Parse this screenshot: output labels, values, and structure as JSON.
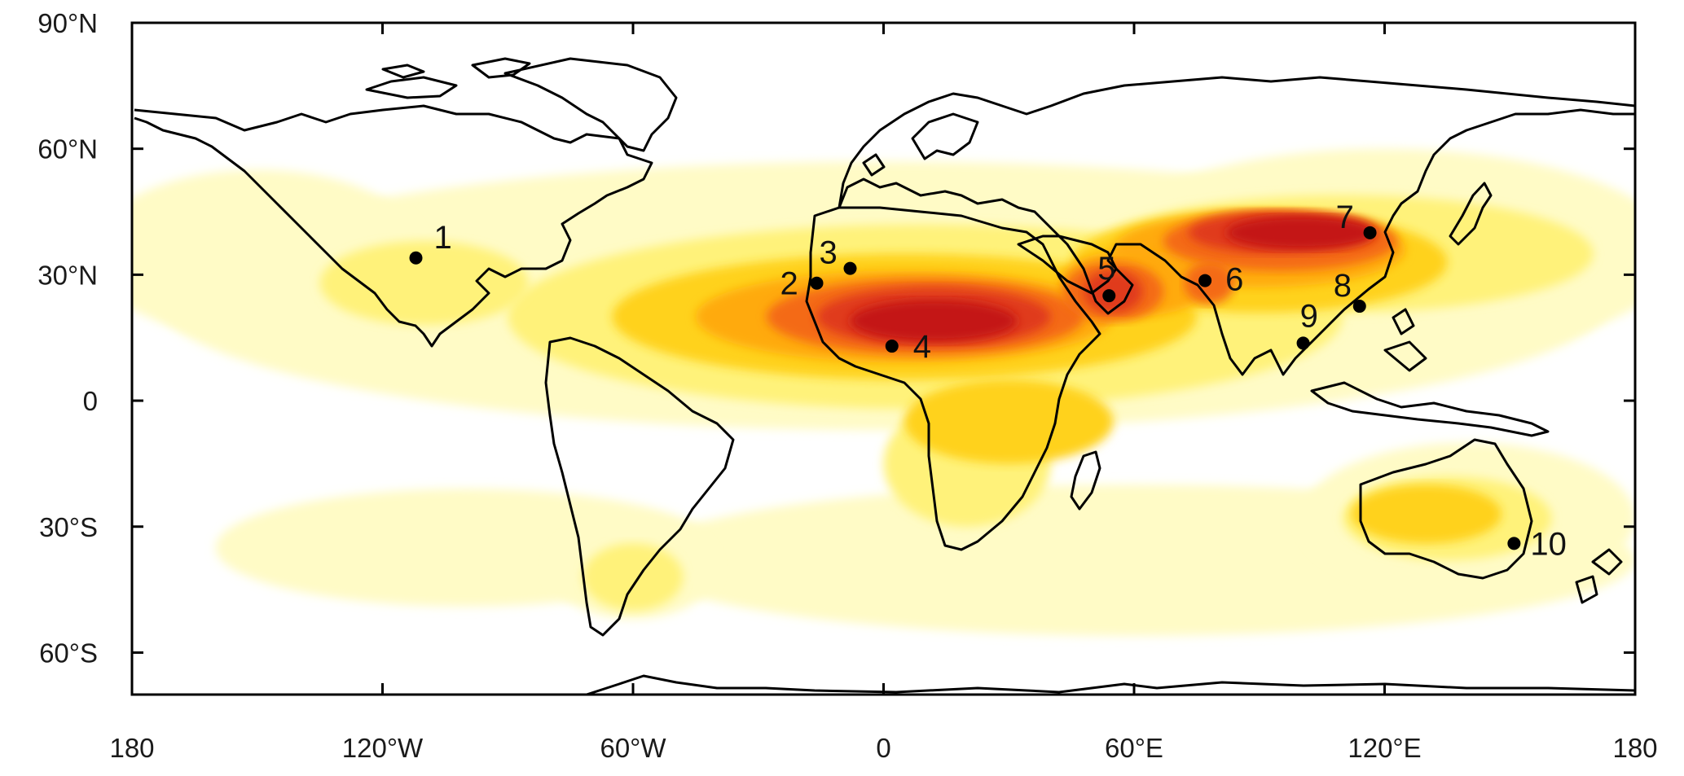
{
  "map": {
    "projection": "equirectangular",
    "lon_range": [
      -180,
      180
    ],
    "lat_range": [
      -70,
      90
    ],
    "x_ticks": [
      {
        "lon": -180,
        "label": "180"
      },
      {
        "lon": -120,
        "label": "120°W"
      },
      {
        "lon": -60,
        "label": "60°W"
      },
      {
        "lon": 0,
        "label": "0"
      },
      {
        "lon": 60,
        "label": "60°E"
      },
      {
        "lon": 120,
        "label": "120°E"
      },
      {
        "lon": 180,
        "label": "180"
      }
    ],
    "y_ticks": [
      {
        "lat": 90,
        "label": "90°N"
      },
      {
        "lat": 60,
        "label": "60°N"
      },
      {
        "lat": 30,
        "label": "30°N"
      },
      {
        "lat": 0,
        "label": "0"
      },
      {
        "lat": -30,
        "label": "30°S"
      },
      {
        "lat": -60,
        "label": "60°S"
      }
    ],
    "shading_colors": [
      "#fffbc6",
      "#fff27a",
      "#ffd21a",
      "#ffaa0e",
      "#f46a12",
      "#e03a1a",
      "#c41313"
    ],
    "marker_color": "#000000",
    "sites": [
      {
        "id": "1",
        "lon": -112,
        "lat": 34
      },
      {
        "id": "2",
        "lon": -16,
        "lat": 28
      },
      {
        "id": "3",
        "lon": -8,
        "lat": 31.5
      },
      {
        "id": "4",
        "lon": 2,
        "lat": 13
      },
      {
        "id": "5",
        "lon": 54,
        "lat": 25
      },
      {
        "id": "6",
        "lon": 77,
        "lat": 28.6
      },
      {
        "id": "7",
        "lon": 116.5,
        "lat": 40
      },
      {
        "id": "8",
        "lon": 114,
        "lat": 22.5
      },
      {
        "id": "9",
        "lon": 100.5,
        "lat": 13.7
      },
      {
        "id": "10",
        "lon": 151,
        "lat": -34
      }
    ]
  }
}
